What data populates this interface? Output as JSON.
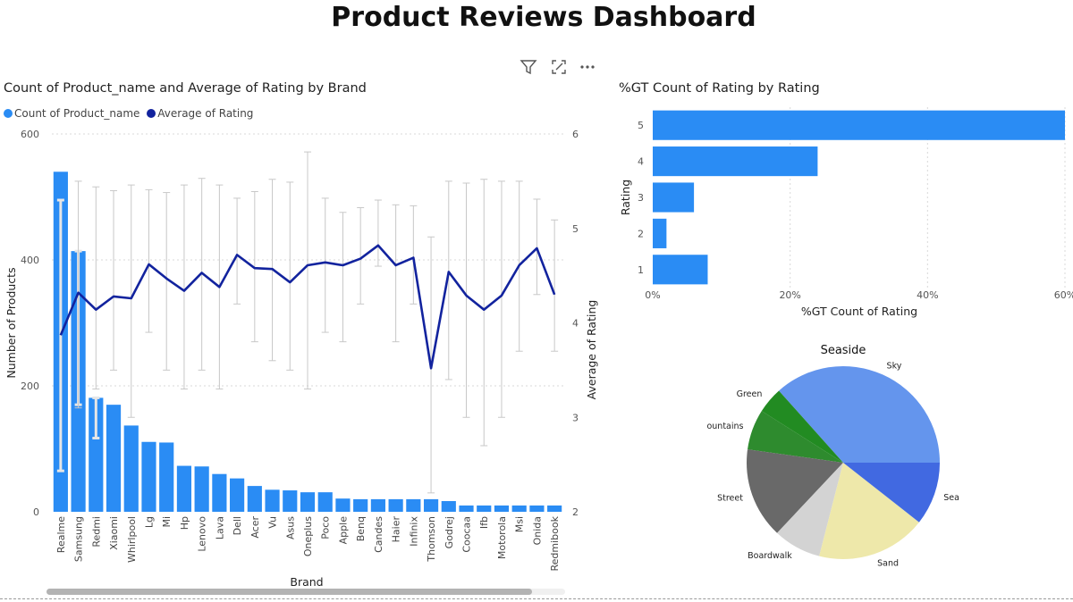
{
  "page": {
    "title": "Product Reviews Dashboard"
  },
  "toolbar": {
    "icons": [
      "filter-icon",
      "focus-mode-icon",
      "more-options-icon"
    ]
  },
  "colors": {
    "bar": "#2a8cf4",
    "line": "#12239e",
    "errorbar": "#c8c8c8",
    "grid": "#d9d9d9",
    "scroll_thumb": "#b3b3b3",
    "scroll_track": "#f0f0f0"
  },
  "chart_data": [
    {
      "type": "bar",
      "title": "Count of Product_name and Average of Rating by Brand",
      "legend": [
        "Count of Product_name",
        "Average of Rating"
      ],
      "xlabel": "Brand",
      "ylabel": "Number of Products",
      "y2label": "Average of Rating",
      "ylim": [
        0,
        600
      ],
      "y_ticks": [
        "0",
        "200",
        "400",
        "600"
      ],
      "y2lim": [
        2,
        6
      ],
      "y2_ticks": [
        "2",
        "3",
        "4",
        "5",
        "6"
      ],
      "categories": [
        "Realme",
        "Samsung",
        "Redmi",
        "Xiaomi",
        "Whirlpool",
        "Lg",
        "Mi",
        "Hp",
        "Lenovo",
        "Lava",
        "Dell",
        "Acer",
        "Vu",
        "Asus",
        "Oneplus",
        "Poco",
        "Apple",
        "Benq",
        "Candes",
        "Haier",
        "Infinix",
        "Thomson",
        "Godrej",
        "Coocaa",
        "Ifb",
        "Motorola",
        "Msi",
        "Onida",
        "Redmibook"
      ],
      "series": [
        {
          "name": "Count of Product_name",
          "type": "bar",
          "values": [
            540,
            414,
            181,
            170,
            137,
            111,
            110,
            73,
            72,
            60,
            53,
            41,
            35,
            34,
            31,
            31,
            21,
            20,
            20,
            20,
            20,
            20,
            17,
            10,
            10,
            10,
            10,
            10,
            10
          ],
          "error_low": [
            65,
            170,
            117,
            null,
            null,
            null,
            null,
            null,
            null,
            null,
            null,
            null,
            null,
            null,
            null,
            null,
            null,
            null,
            null,
            null,
            null,
            null,
            null,
            null,
            null,
            null,
            null,
            null,
            null
          ],
          "error_high": [
            495,
            414,
            181,
            null,
            null,
            null,
            null,
            null,
            null,
            null,
            null,
            null,
            null,
            null,
            null,
            null,
            null,
            null,
            null,
            null,
            null,
            null,
            null,
            null,
            null,
            null,
            null,
            null,
            null
          ]
        },
        {
          "name": "Average of Rating",
          "type": "line",
          "values": [
            3.87,
            4.32,
            4.14,
            4.28,
            4.26,
            4.62,
            4.47,
            4.34,
            4.53,
            4.38,
            4.72,
            4.58,
            4.57,
            4.43,
            4.61,
            4.64,
            4.61,
            4.68,
            4.82,
            4.61,
            4.69,
            3.52,
            4.54,
            4.29,
            4.14,
            4.29,
            4.61,
            4.79,
            4.3
          ],
          "error_low": [
            null,
            3.1,
            3.3,
            3.5,
            3.0,
            3.9,
            3.5,
            3.3,
            3.5,
            3.3,
            4.2,
            3.8,
            3.6,
            3.5,
            3.3,
            3.9,
            3.8,
            4.2,
            4.6,
            3.8,
            4.2,
            2.2,
            3.4,
            3.0,
            2.7,
            3.0,
            3.7,
            4.3,
            3.7
          ],
          "error_high": [
            null,
            5.5,
            5.44,
            5.4,
            5.46,
            5.41,
            5.38,
            5.46,
            5.53,
            5.46,
            5.32,
            5.39,
            5.52,
            5.49,
            5.81,
            5.32,
            5.17,
            5.22,
            5.3,
            5.25,
            5.24,
            4.91,
            5.5,
            5.48,
            5.52,
            5.5,
            5.5,
            5.31,
            5.09
          ]
        }
      ]
    },
    {
      "type": "bar",
      "orientation": "horizontal",
      "title": "%GT Count of Rating by Rating",
      "xlabel": "%GT Count of Rating",
      "ylabel": "Rating",
      "categories": [
        "5",
        "4",
        "3",
        "2",
        "1"
      ],
      "values": [
        60,
        24,
        6,
        2,
        8
      ],
      "xlim": [
        0,
        60
      ],
      "x_ticks": [
        "0%",
        "20%",
        "40%",
        "60%"
      ]
    },
    {
      "type": "pie",
      "title": "Seaside",
      "labels": [
        "Sky",
        "Green",
        "Mountains",
        "Street",
        "Boardwalk",
        "Sand",
        "Sea"
      ],
      "values": [
        36.6,
        4.4,
        6.8,
        15.2,
        8.0,
        18.4,
        10.6
      ],
      "colors": [
        "#6495ed",
        "#228b22",
        "#2e8b2e",
        "#696969",
        "#d3d3d3",
        "#eee8aa",
        "#4169e1"
      ]
    }
  ]
}
